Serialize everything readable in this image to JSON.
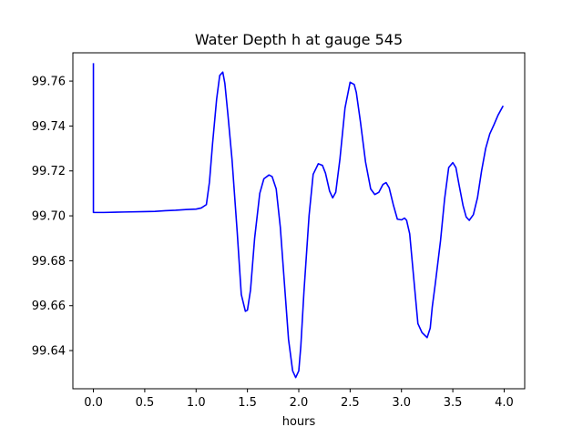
{
  "chart_data": {
    "type": "line",
    "title": "Water Depth h at gauge 545",
    "xlabel": "hours",
    "ylabel": "",
    "xlim": [
      -0.2,
      4.2
    ],
    "ylim": [
      99.623,
      99.7726
    ],
    "grid": false,
    "x_ticks": [
      0.0,
      0.5,
      1.0,
      1.5,
      2.0,
      2.5,
      3.0,
      3.5,
      4.0
    ],
    "x_tick_labels": [
      "0.0",
      "0.5",
      "1.0",
      "1.5",
      "2.0",
      "2.5",
      "3.0",
      "3.5",
      "4.0"
    ],
    "y_ticks": [
      99.64,
      99.66,
      99.68,
      99.7,
      99.72,
      99.74,
      99.76
    ],
    "y_tick_labels": [
      "99.64",
      "99.66",
      "99.68",
      "99.70",
      "99.72",
      "99.74",
      "99.76"
    ],
    "series": [
      {
        "color": "#0000ff",
        "x": [
          0.0,
          0.0,
          0.01,
          0.1,
          0.3,
          0.5,
          0.6,
          0.7,
          0.8,
          0.9,
          1.0,
          1.05,
          1.1,
          1.13,
          1.16,
          1.2,
          1.23,
          1.26,
          1.28,
          1.31,
          1.35,
          1.4,
          1.44,
          1.48,
          1.5,
          1.53,
          1.57,
          1.62,
          1.66,
          1.71,
          1.74,
          1.78,
          1.82,
          1.86,
          1.9,
          1.94,
          1.97,
          2.0,
          2.02,
          2.05,
          2.1,
          2.14,
          2.19,
          2.23,
          2.26,
          2.3,
          2.33,
          2.36,
          2.4,
          2.45,
          2.5,
          2.54,
          2.56,
          2.6,
          2.65,
          2.7,
          2.74,
          2.78,
          2.82,
          2.85,
          2.88,
          2.92,
          2.96,
          3.0,
          3.03,
          3.05,
          3.08,
          3.12,
          3.16,
          3.2,
          3.25,
          3.28,
          3.3,
          3.33,
          3.38,
          3.42,
          3.46,
          3.5,
          3.53,
          3.56,
          3.6,
          3.63,
          3.66,
          3.7,
          3.74,
          3.78,
          3.82,
          3.86,
          3.9,
          3.94,
          3.99
        ],
        "y": [
          99.768,
          99.7015,
          99.7015,
          99.7015,
          99.7017,
          99.7019,
          99.702,
          99.7023,
          99.7025,
          99.7028,
          99.703,
          99.7035,
          99.705,
          99.715,
          99.732,
          99.752,
          99.7625,
          99.764,
          99.759,
          99.745,
          99.725,
          99.693,
          99.665,
          99.6575,
          99.658,
          99.667,
          99.69,
          99.71,
          99.7165,
          99.7182,
          99.7175,
          99.712,
          99.695,
          99.67,
          99.645,
          99.631,
          99.628,
          99.631,
          99.642,
          99.666,
          99.7,
          99.7185,
          99.7232,
          99.7225,
          99.719,
          99.711,
          99.708,
          99.7105,
          99.725,
          99.748,
          99.7595,
          99.7585,
          99.755,
          99.742,
          99.724,
          99.712,
          99.7095,
          99.7105,
          99.714,
          99.7148,
          99.7125,
          99.705,
          99.6985,
          99.6982,
          99.699,
          99.698,
          99.692,
          99.672,
          99.652,
          99.648,
          99.6458,
          99.65,
          99.6595,
          99.67,
          99.6888,
          99.7075,
          99.7215,
          99.7237,
          99.7215,
          99.714,
          99.7045,
          99.6995,
          99.698,
          99.7005,
          99.708,
          99.72,
          99.73,
          99.7365,
          99.7405,
          99.7448,
          99.749
        ]
      }
    ]
  }
}
